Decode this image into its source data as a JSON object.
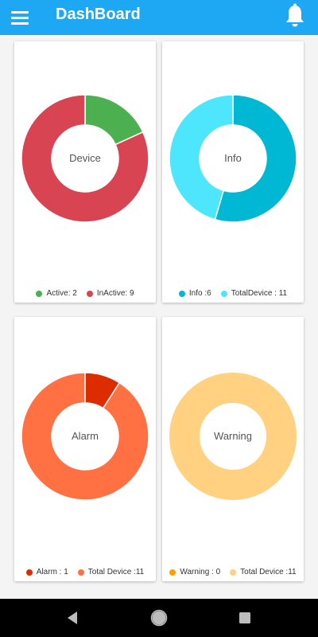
{
  "header": {
    "title": "DashBoard",
    "background": "#1ea7f3",
    "menu_icon": "hamburger-menu-icon",
    "bell_icon": "bell-icon"
  },
  "chart_data": [
    {
      "type": "pie",
      "center_label": "Device",
      "series": [
        {
          "name": "Active",
          "value": 2,
          "color": "#4caf50",
          "legend_label": "Active: 2"
        },
        {
          "name": "InActive",
          "value": 9,
          "color": "#d94452",
          "legend_label": "InActive: 9"
        }
      ]
    },
    {
      "type": "pie",
      "center_label": "Info",
      "series": [
        {
          "name": "Info",
          "value": 6,
          "color": "#00b8d4",
          "legend_label": "Info :6"
        },
        {
          "name": "TotalDevice",
          "value": 5,
          "color": "#4ee6fc",
          "legend_label": "TotalDevice : 11"
        }
      ]
    },
    {
      "type": "pie",
      "center_label": "Alarm",
      "series": [
        {
          "name": "Alarm",
          "value": 1,
          "color": "#dd2c00",
          "legend_label": "Alarm : 1"
        },
        {
          "name": "Total Device",
          "value": 10,
          "color": "#ff7043",
          "legend_label": "Total Device :11"
        }
      ]
    },
    {
      "type": "pie",
      "center_label": "Warning",
      "series": [
        {
          "name": "Warning",
          "value": 0,
          "color": "#ffa000",
          "legend_label": "Warning : 0"
        },
        {
          "name": "Total Device",
          "value": 11,
          "color": "#ffd180",
          "legend_label": "Total Device :11"
        }
      ]
    }
  ],
  "navbar": {
    "back_icon": "back-triangle-icon",
    "home_icon": "home-circle-icon",
    "recents_icon": "recents-square-icon"
  }
}
